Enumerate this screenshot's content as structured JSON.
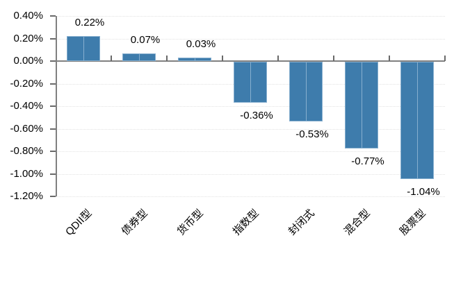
{
  "chart_data": {
    "type": "bar",
    "categories": [
      "QDII型",
      "债券型",
      "货币型",
      "指数型",
      "封闭式",
      "混合型",
      "股票型"
    ],
    "values": [
      0.22,
      0.07,
      0.03,
      -0.36,
      -0.53,
      -0.77,
      -1.04
    ],
    "data_labels": [
      "0.22%",
      "0.07%",
      "0.03%",
      "-0.36%",
      "-0.53%",
      "-0.77%",
      "-1.04%"
    ],
    "y_tick_labels": [
      "0.40%",
      "0.20%",
      "0.00%",
      "-0.20%",
      "-0.40%",
      "-0.60%",
      "-0.80%",
      "-1.00%",
      "-1.20%"
    ],
    "ylim": [
      -1.2,
      0.4
    ],
    "y_step": 0.2,
    "grid": true,
    "legend": false,
    "colors": {
      "bar_fill": "#3E7CAC",
      "bar_border": "#87AFCF",
      "bar_seam": "#87AFCF",
      "axis_line": "#808080",
      "tick_mark": "#696969",
      "gridline": "#E2E2E2",
      "label_text": "#000000",
      "background": "#FFFFFF"
    }
  }
}
